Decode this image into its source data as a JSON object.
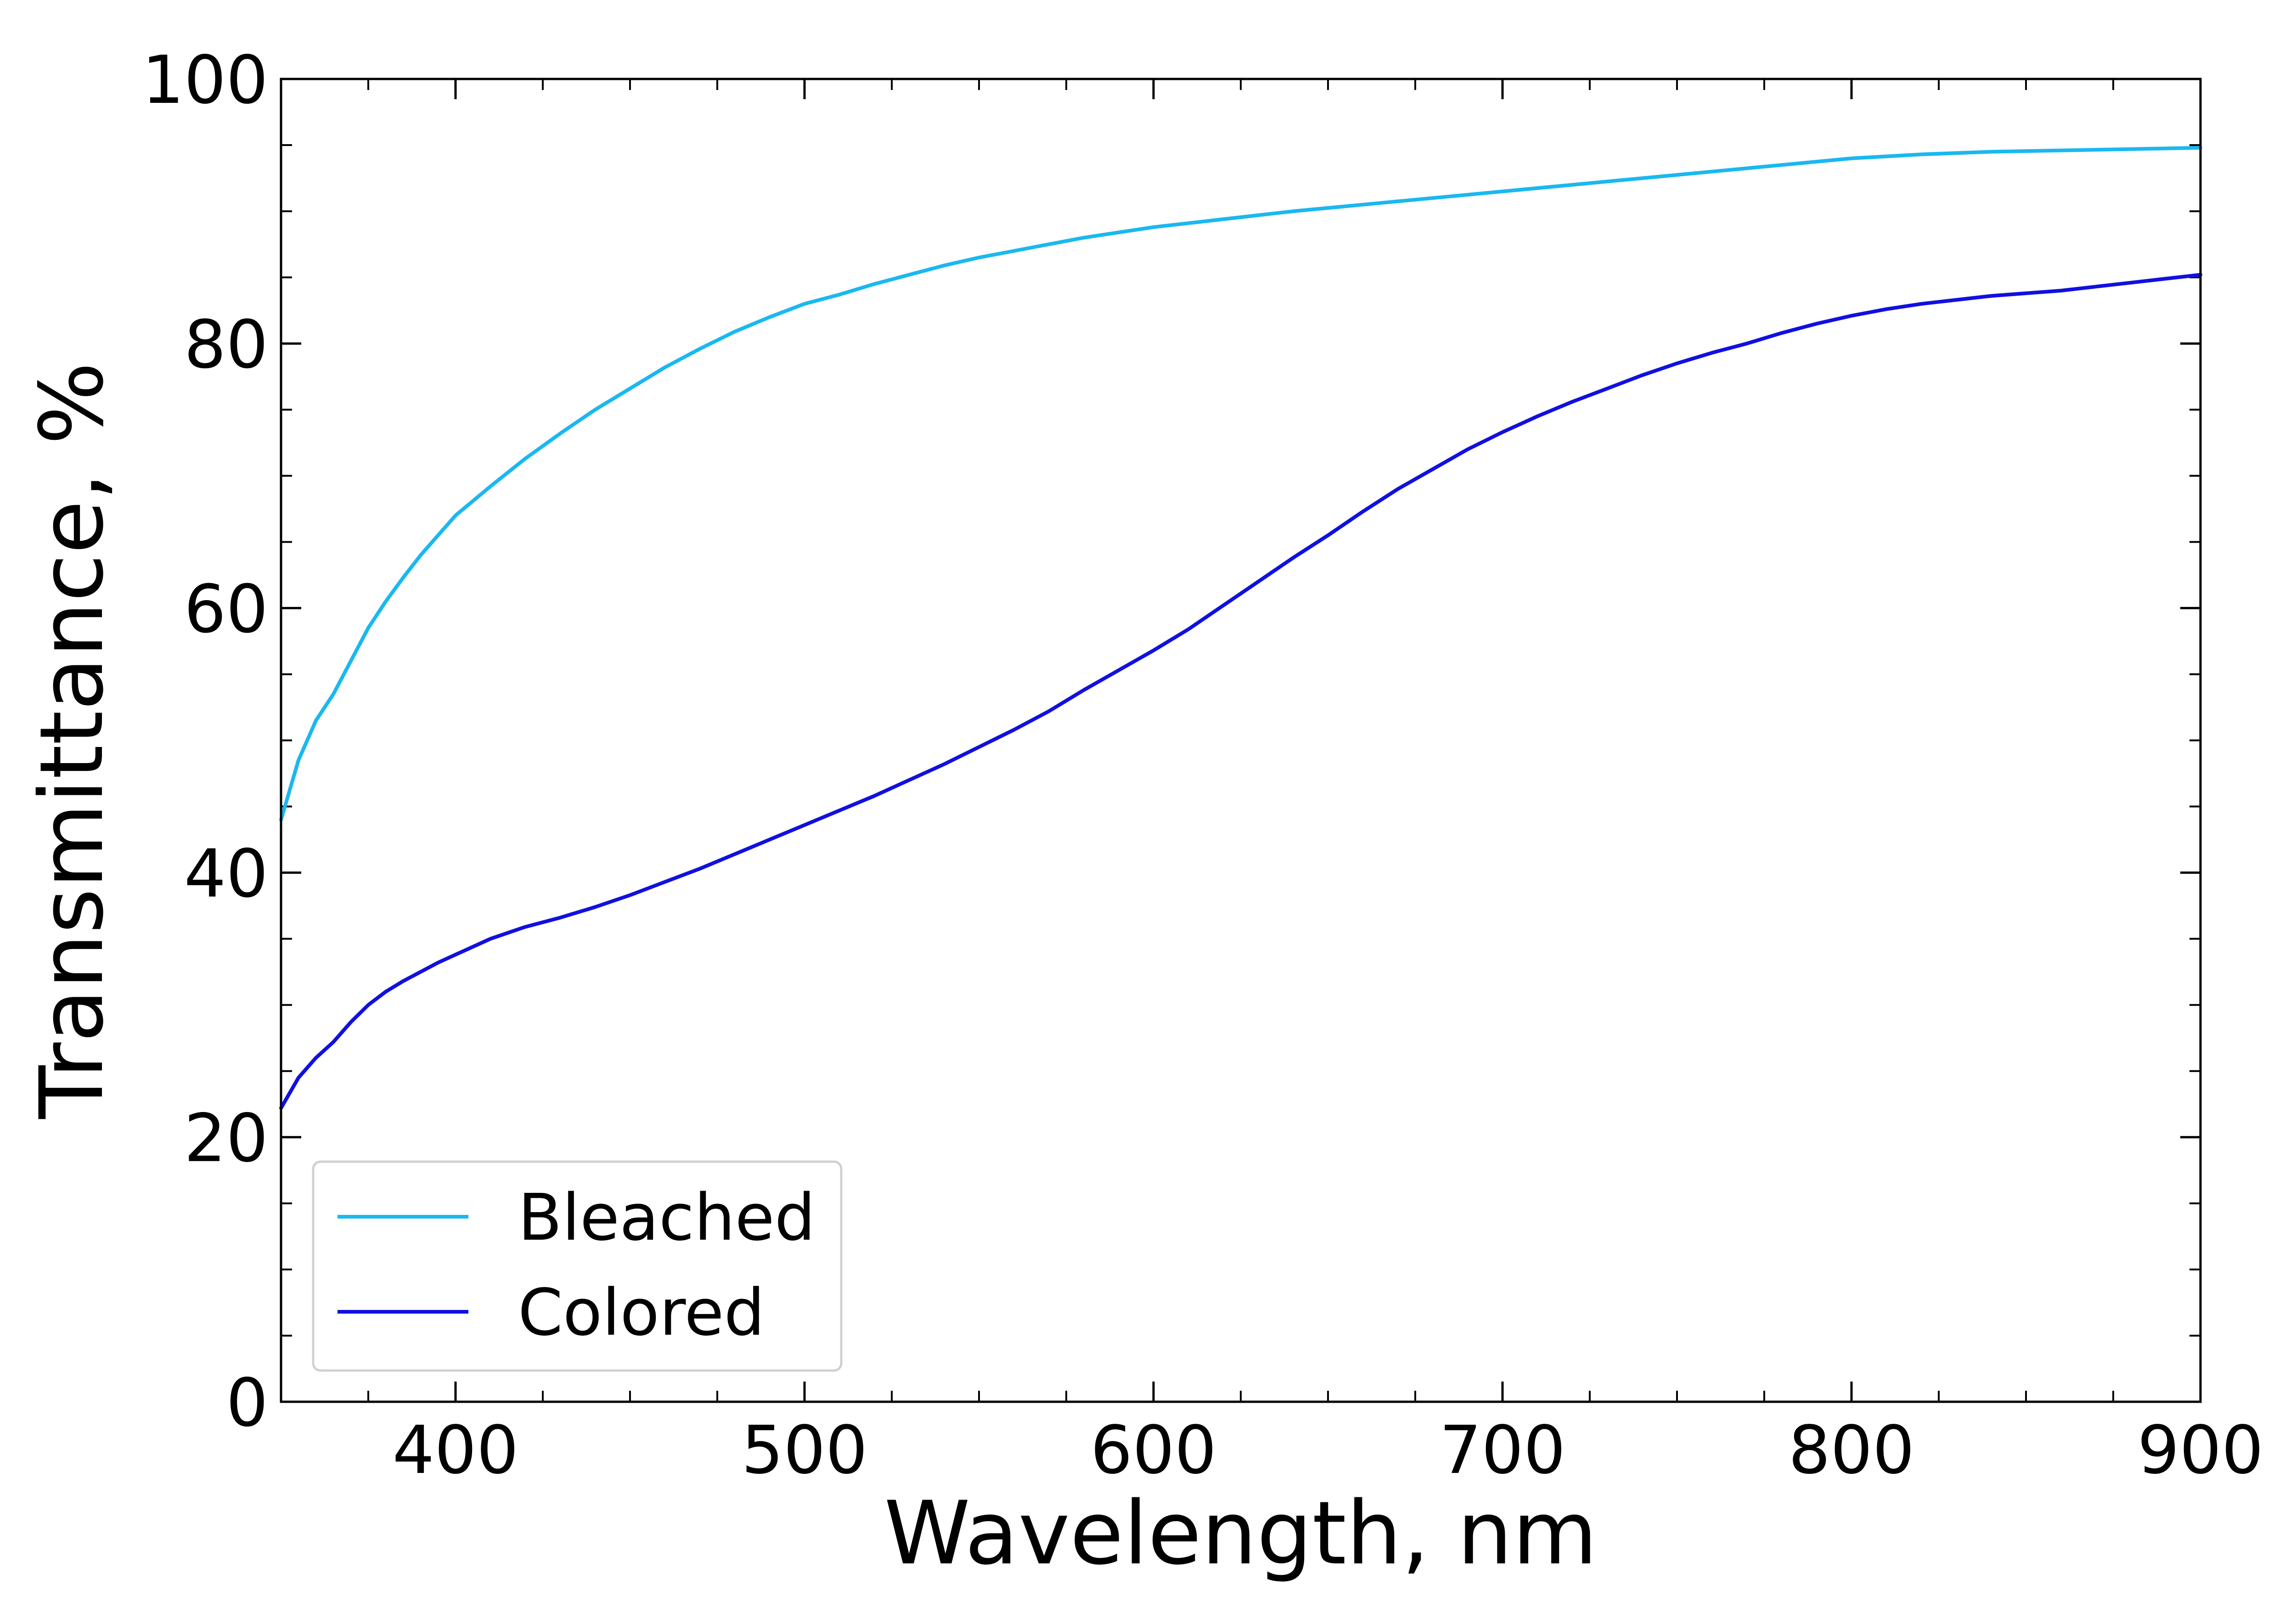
{
  "chart_data": {
    "type": "line",
    "title": "",
    "xlabel": "Wavelength, nm",
    "ylabel": "Transmittance, %",
    "xlim": [
      350,
      900
    ],
    "ylim": [
      0,
      100
    ],
    "xticks": [
      400,
      500,
      600,
      700,
      800,
      900
    ],
    "yticks": [
      0,
      20,
      40,
      60,
      80,
      100
    ],
    "x_minor_step": 25,
    "y_minor_step": 5,
    "tick_direction": "in",
    "ticks_on_all_sides": true,
    "grid": false,
    "legend": {
      "position": "lower-left"
    },
    "series": [
      {
        "name": "Bleached",
        "color": "#1ab8f0",
        "x": [
          350,
          355,
          360,
          365,
          370,
          375,
          380,
          385,
          390,
          395,
          400,
          410,
          420,
          430,
          440,
          450,
          460,
          470,
          480,
          490,
          500,
          510,
          520,
          530,
          540,
          550,
          560,
          570,
          580,
          590,
          600,
          620,
          640,
          660,
          680,
          700,
          720,
          740,
          760,
          780,
          800,
          820,
          840,
          860,
          880,
          900
        ],
        "y": [
          44.0,
          48.5,
          51.5,
          53.5,
          56.0,
          58.5,
          60.5,
          62.3,
          64.0,
          65.5,
          67.0,
          69.2,
          71.3,
          73.2,
          75.0,
          76.6,
          78.2,
          79.6,
          80.9,
          82.0,
          83.0,
          83.7,
          84.5,
          85.2,
          85.9,
          86.5,
          87.0,
          87.5,
          88.0,
          88.4,
          88.8,
          89.4,
          90.0,
          90.5,
          91.0,
          91.5,
          92.0,
          92.5,
          93.0,
          93.5,
          94.0,
          94.3,
          94.5,
          94.6,
          94.7,
          94.8
        ]
      },
      {
        "name": "Colored",
        "color": "#1010e0",
        "x": [
          350,
          355,
          360,
          365,
          370,
          375,
          380,
          385,
          390,
          395,
          400,
          410,
          420,
          430,
          440,
          450,
          460,
          470,
          480,
          490,
          500,
          510,
          520,
          530,
          540,
          550,
          560,
          570,
          580,
          590,
          600,
          610,
          620,
          630,
          640,
          650,
          660,
          670,
          680,
          690,
          700,
          710,
          720,
          730,
          740,
          750,
          760,
          770,
          780,
          790,
          800,
          810,
          820,
          830,
          840,
          850,
          860,
          870,
          880,
          890,
          900
        ],
        "y": [
          22.2,
          24.5,
          26.0,
          27.2,
          28.7,
          30.0,
          31.0,
          31.8,
          32.5,
          33.2,
          33.8,
          35.0,
          35.9,
          36.6,
          37.4,
          38.3,
          39.3,
          40.3,
          41.4,
          42.5,
          43.6,
          44.7,
          45.8,
          47.0,
          48.2,
          49.5,
          50.8,
          52.2,
          53.8,
          55.3,
          56.8,
          58.4,
          60.2,
          62.0,
          63.8,
          65.5,
          67.3,
          69.0,
          70.5,
          72.0,
          73.3,
          74.5,
          75.6,
          76.6,
          77.6,
          78.5,
          79.3,
          80.0,
          80.8,
          81.5,
          82.1,
          82.6,
          83.0,
          83.3,
          83.6,
          83.8,
          84.0,
          84.3,
          84.6,
          84.9,
          85.2
        ]
      }
    ]
  }
}
